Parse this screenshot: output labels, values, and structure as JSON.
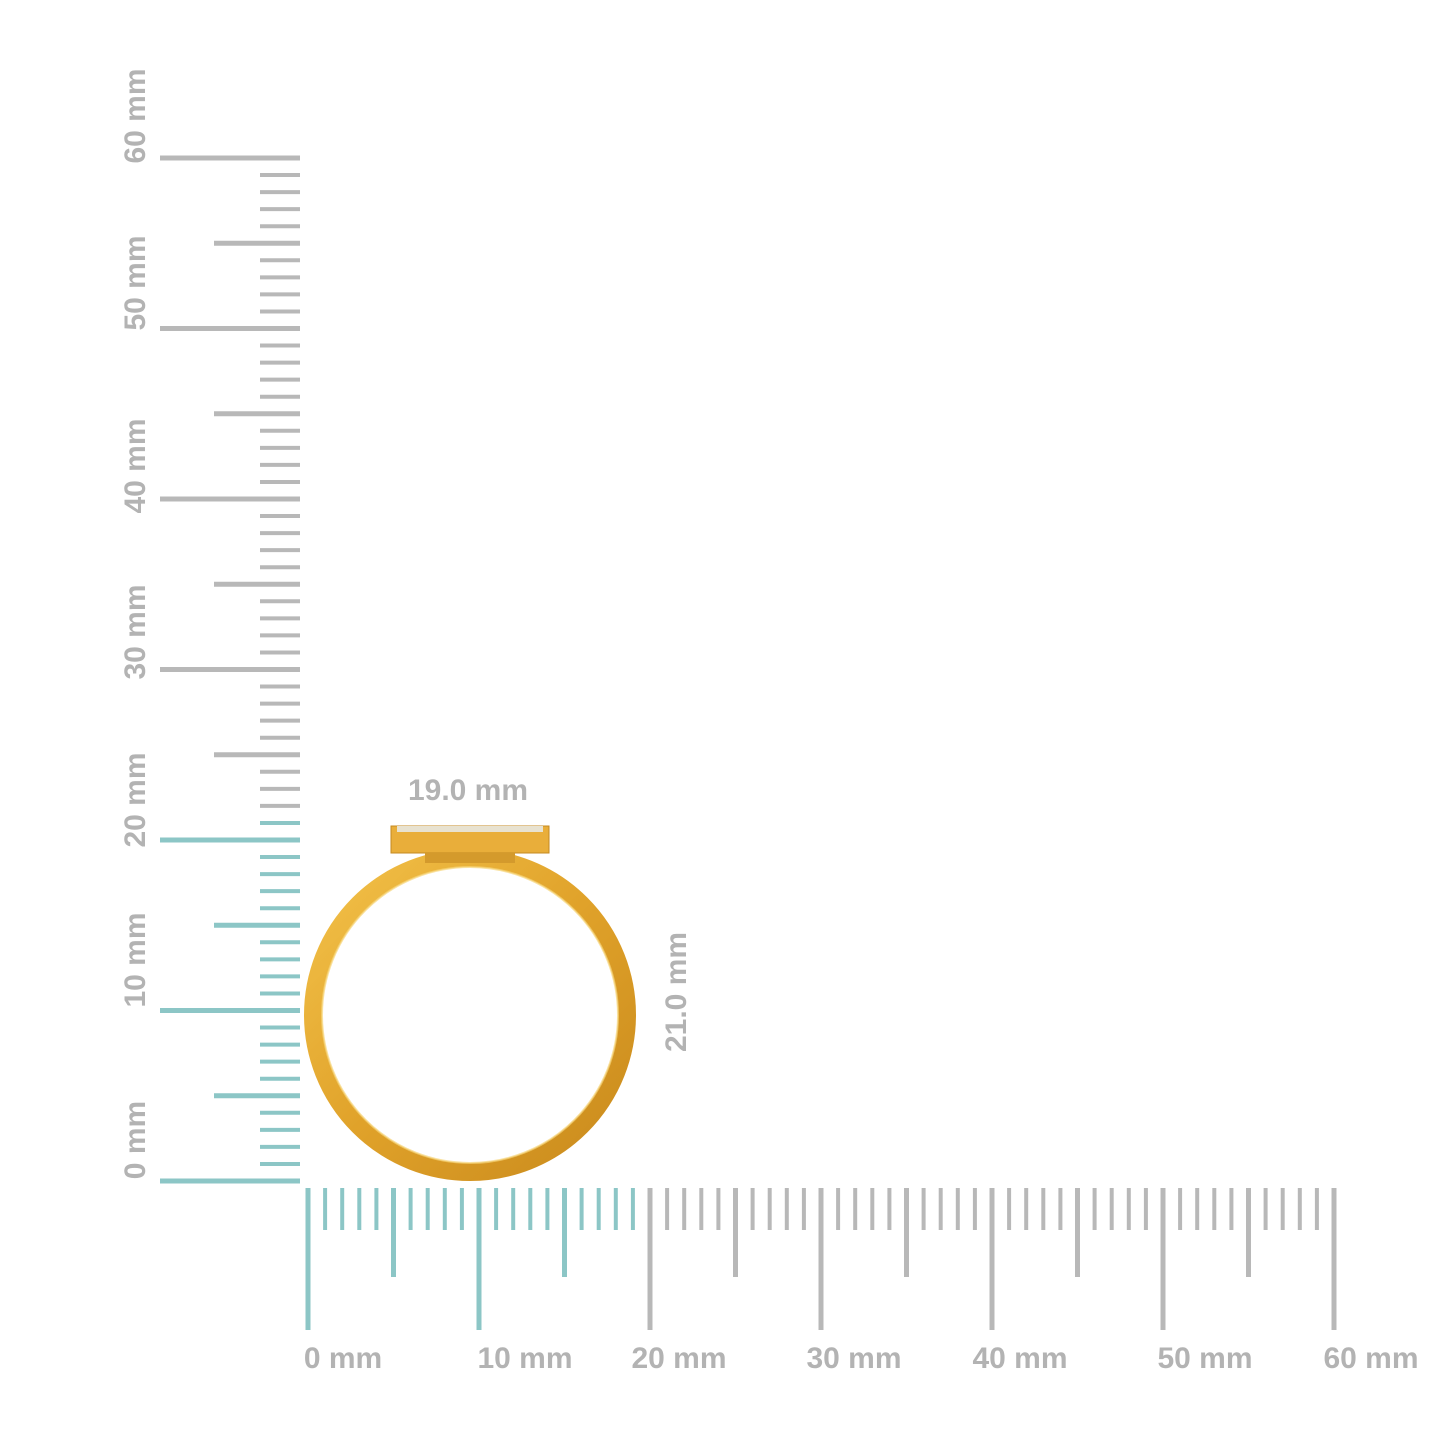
{
  "rulers": {
    "x_labels": [
      "0 mm",
      "10 mm",
      "20 mm",
      "30 mm",
      "40 mm",
      "50 mm",
      "60 mm"
    ],
    "y_labels": [
      "0 mm",
      "10 mm",
      "20 mm",
      "30 mm",
      "40 mm",
      "50 mm",
      "60 mm"
    ]
  },
  "dimensions": {
    "width": "19.0 mm",
    "height": "21.0 mm"
  }
}
